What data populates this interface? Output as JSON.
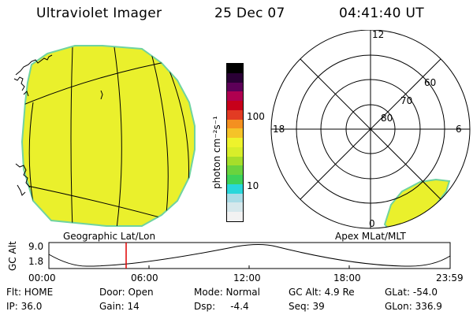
{
  "header": {
    "instrument": "Ultraviolet Imager",
    "date": "25 Dec 07",
    "time": "04:41:40 UT"
  },
  "colorbar": {
    "unit_label": "photon cm⁻²s⁻¹",
    "tick_100": "100",
    "tick_10": "10",
    "colors": [
      "#f2f2f2",
      "#d6e8ec",
      "#a9dce6",
      "#28d7da",
      "#3dd25a",
      "#6ad33e",
      "#a6de2a",
      "#d8ee2a",
      "#eef32c",
      "#f5c328",
      "#f49020",
      "#e23b23",
      "#c7001a",
      "#b00050",
      "#5d0058",
      "#2a0035",
      "#000000"
    ]
  },
  "geo_map": {
    "label": "Geographic Lat/Lon",
    "fill_color": "#eaf02c",
    "edge_color": "#6fd3a0"
  },
  "polar_plot": {
    "label": "Apex MLat/MLT",
    "mlt_labels": [
      "12",
      "18",
      "6",
      "0"
    ],
    "lat_labels": [
      "60",
      "70",
      "80"
    ]
  },
  "altitude_plot": {
    "y_label": "GC Alt",
    "y_ticks": [
      "9.0",
      "1.8"
    ],
    "x_ticks": [
      "00:00",
      "06:00",
      "12:00",
      "18:00",
      "23:59"
    ],
    "current_time_marker_color": "#e00000"
  },
  "info": {
    "flt": "Flt: HOME",
    "door": "Door: Open",
    "mode": "Mode: Normal",
    "gc_alt": "GC Alt: 4.9 Re",
    "glat": "GLat: -54.0",
    "ip": "IP: 36.0",
    "gain": "Gain: 14",
    "dsp": "Dsp:     -4.4",
    "seq": "Seq: 39",
    "glon": "GLon: 336.9"
  }
}
